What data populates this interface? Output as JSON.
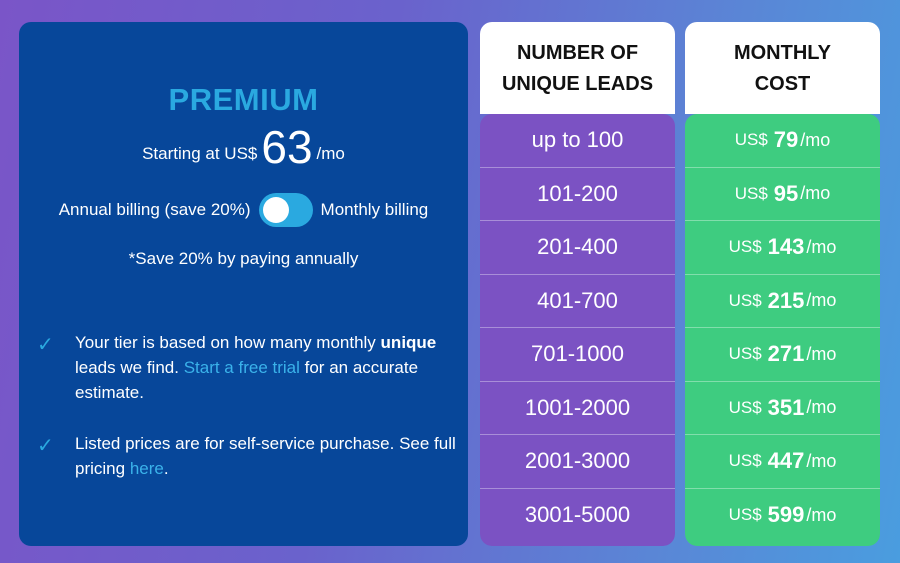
{
  "plan": {
    "title": "PREMIUM",
    "price_prefix": "Starting at US$",
    "price_value": "63",
    "price_suffix": "/mo",
    "billing_left": "Annual billing (save 20%)",
    "billing_right": "Monthly billing",
    "toggle_state": "annual",
    "save_note": "*Save 20% by paying annually",
    "bullet1": {
      "t1": "Your tier is based on how many monthly",
      "bold": "unique",
      "t2": " leads we find. ",
      "link": "Start a free trial",
      "t3": " for an accurate estimate."
    },
    "bullet2": {
      "t1": "Listed prices are for self-service purchase. See full pricing ",
      "link": "here",
      "t2": "."
    }
  },
  "table": {
    "leads_header_1": "NUMBER OF",
    "leads_header_2": "UNIQUE LEADS",
    "cost_header_1": "MONTHLY",
    "cost_header_2": "COST",
    "currency": "US$",
    "per": "/mo",
    "rows": [
      {
        "leads": "up to 100",
        "price": "79"
      },
      {
        "leads": "101-200",
        "price": "95"
      },
      {
        "leads": "201-400",
        "price": "143"
      },
      {
        "leads": "401-700",
        "price": "215"
      },
      {
        "leads": "701-1000",
        "price": "271"
      },
      {
        "leads": "1001-2000",
        "price": "351"
      },
      {
        "leads": "2001-3000",
        "price": "447"
      },
      {
        "leads": "3001-5000",
        "price": "599"
      }
    ]
  },
  "colors": {
    "card_bg": "#07479a",
    "accent": "#2aa9e0",
    "leads_bg": "#7b52c3",
    "cost_bg": "#3ecc80"
  },
  "icons": {
    "check": "check-icon"
  }
}
